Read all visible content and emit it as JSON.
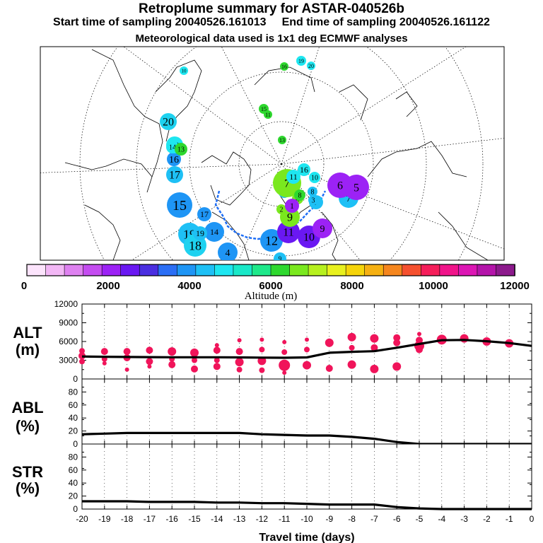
{
  "titles": {
    "main": "Retroplume summary for ASTAR-040526b",
    "start_label": "Start time of sampling",
    "start_value": "20040526.161013",
    "end_label": "End time of sampling",
    "end_value": "20040526.161122",
    "met": "Meteorological data used is 1x1 deg ECMWF analyses"
  },
  "map": {
    "legend_ticks": [
      "0",
      "2000",
      "4000",
      "6000",
      "8000",
      "10000",
      "12000"
    ],
    "legend_label": "Altitude (m)",
    "legend_colors": [
      "#fce4fc",
      "#f2b7f5",
      "#de81f0",
      "#c44cf0",
      "#9c22f5",
      "#6a18f2",
      "#4a2ee0",
      "#2a6ef5",
      "#1e95f5",
      "#1ec0f5",
      "#1ee6f0",
      "#19e8c8",
      "#1ee88a",
      "#2ed82e",
      "#7ae81e",
      "#b6f01e",
      "#e8f01e",
      "#f5d40a",
      "#f5b012",
      "#f5861e",
      "#f5502e",
      "#f51e5a",
      "#f0148a",
      "#dc16b4",
      "#b414aa",
      "#8c1a8c"
    ],
    "labels": [
      {
        "t": "20",
        "c": "#1ed2f0"
      },
      {
        "t": "19",
        "c": "#1ec0f5"
      },
      {
        "t": "18",
        "c": "#1ed2f0"
      },
      {
        "t": "17",
        "c": "#1ec0f5"
      },
      {
        "t": "16",
        "c": "#1e95f5"
      },
      {
        "t": "15",
        "c": "#1e95f5"
      },
      {
        "t": "14",
        "c": "#1e95f5"
      },
      {
        "t": "13",
        "c": "#1ec0f5"
      },
      {
        "t": "12",
        "c": "#1e95f5"
      },
      {
        "t": "11",
        "c": "#6a18f2"
      },
      {
        "t": "10",
        "c": "#6a18f2"
      },
      {
        "t": "9",
        "c": "#9c22f5"
      },
      {
        "t": "9",
        "c": "#7ae81e"
      },
      {
        "t": "7",
        "c": "#1ec0f5"
      },
      {
        "t": "7",
        "c": "#7ae81e"
      },
      {
        "t": "7",
        "c": "#1ec0f5"
      },
      {
        "t": "6",
        "c": "#9c22f5"
      },
      {
        "t": "5",
        "c": "#9c22f5"
      },
      {
        "t": "4",
        "c": "#7ae81e"
      },
      {
        "t": "3",
        "c": "#1ec0f5"
      },
      {
        "t": "2",
        "c": "#7ae81e"
      },
      {
        "t": "1",
        "c": "#9c22f5"
      },
      {
        "t": "18",
        "c": "#1ee6f0"
      },
      {
        "t": "14",
        "c": "#1ee6f0"
      },
      {
        "t": "13",
        "c": "#2ed82e"
      },
      {
        "t": "4",
        "c": "#1e95f5"
      },
      {
        "t": "8",
        "c": "#1ec0f5"
      },
      {
        "t": "16",
        "c": "#1ee6f0"
      },
      {
        "t": "11",
        "c": "#1ee6f0"
      },
      {
        "t": "10",
        "c": "#1ee6f0"
      },
      {
        "t": "19",
        "c": "#1ee6f0"
      },
      {
        "t": "20",
        "c": "#1ee6f0"
      },
      {
        "t": "15",
        "c": "#2ed82e"
      },
      {
        "t": "11",
        "c": "#2ed82e"
      },
      {
        "t": "13",
        "c": "#2ed82e"
      },
      {
        "t": "16",
        "c": "#2ed82e"
      },
      {
        "t": "17",
        "c": "#1e95f5"
      },
      {
        "t": "19",
        "c": "#1ec0f5"
      },
      {
        "t": "10",
        "c": "#1ee6f0"
      },
      {
        "t": "8",
        "c": "#2ed82e"
      },
      {
        "t": "9",
        "c": "#1ec0f5"
      }
    ]
  },
  "chart_data": [
    {
      "type": "line",
      "panel": "ALT",
      "ylabel_line1": "ALT",
      "ylabel_line2": "(m)",
      "xlim": [
        -20,
        0
      ],
      "ylim": [
        0,
        12000
      ],
      "yticks": [
        "0",
        "3000",
        "6000",
        "9000",
        "12000"
      ],
      "line": {
        "x": [
          -20,
          -19,
          -18,
          -17,
          -16,
          -15,
          -14,
          -13,
          -12,
          -11,
          -10,
          -9,
          -8,
          -7,
          -6,
          -5,
          -4,
          -3,
          -2,
          -1,
          0
        ],
        "y": [
          3600,
          3550,
          3520,
          3500,
          3480,
          3480,
          3480,
          3450,
          3420,
          3400,
          3450,
          4200,
          4350,
          4450,
          5000,
          5600,
          6200,
          6250,
          6050,
          5750,
          5300
        ]
      },
      "dots": [
        {
          "x": -20,
          "y": 3700,
          "s": 5
        },
        {
          "x": -20,
          "y": 4500,
          "s": 4
        },
        {
          "x": -20,
          "y": 2800,
          "s": 4
        },
        {
          "x": -19,
          "y": 4400,
          "s": 5
        },
        {
          "x": -19,
          "y": 3200,
          "s": 4
        },
        {
          "x": -19,
          "y": 2500,
          "s": 3
        },
        {
          "x": -18,
          "y": 4400,
          "s": 5
        },
        {
          "x": -18,
          "y": 3400,
          "s": 5
        },
        {
          "x": -18,
          "y": 1500,
          "s": 3
        },
        {
          "x": -17,
          "y": 4600,
          "s": 5
        },
        {
          "x": -17,
          "y": 2800,
          "s": 5
        },
        {
          "x": -17,
          "y": 2000,
          "s": 3
        },
        {
          "x": -16,
          "y": 4400,
          "s": 6
        },
        {
          "x": -16,
          "y": 3200,
          "s": 4
        },
        {
          "x": -16,
          "y": 2300,
          "s": 5
        },
        {
          "x": -15,
          "y": 4200,
          "s": 6
        },
        {
          "x": -15,
          "y": 3000,
          "s": 4
        },
        {
          "x": -15,
          "y": 1600,
          "s": 5
        },
        {
          "x": -14,
          "y": 5400,
          "s": 3
        },
        {
          "x": -14,
          "y": 4600,
          "s": 5
        },
        {
          "x": -14,
          "y": 3000,
          "s": 4
        },
        {
          "x": -14,
          "y": 2000,
          "s": 5
        },
        {
          "x": -13,
          "y": 6200,
          "s": 3
        },
        {
          "x": -13,
          "y": 4400,
          "s": 5
        },
        {
          "x": -13,
          "y": 2700,
          "s": 6
        },
        {
          "x": -13,
          "y": 1500,
          "s": 4
        },
        {
          "x": -12,
          "y": 6300,
          "s": 3
        },
        {
          "x": -12,
          "y": 4700,
          "s": 4
        },
        {
          "x": -12,
          "y": 2900,
          "s": 6
        },
        {
          "x": -12,
          "y": 1400,
          "s": 4
        },
        {
          "x": -11,
          "y": 5900,
          "s": 3
        },
        {
          "x": -11,
          "y": 4300,
          "s": 4
        },
        {
          "x": -11,
          "y": 2200,
          "s": 8
        },
        {
          "x": -11,
          "y": 1000,
          "s": 3
        },
        {
          "x": -10,
          "y": 6300,
          "s": 3
        },
        {
          "x": -10,
          "y": 4700,
          "s": 4
        },
        {
          "x": -10,
          "y": 2200,
          "s": 6
        },
        {
          "x": -9,
          "y": 5800,
          "s": 6
        },
        {
          "x": -9,
          "y": 1700,
          "s": 5
        },
        {
          "x": -8,
          "y": 6700,
          "s": 6
        },
        {
          "x": -8,
          "y": 5000,
          "s": 4
        },
        {
          "x": -8,
          "y": 2300,
          "s": 6
        },
        {
          "x": -7,
          "y": 6500,
          "s": 6
        },
        {
          "x": -7,
          "y": 5000,
          "s": 5
        },
        {
          "x": -7,
          "y": 1600,
          "s": 6
        },
        {
          "x": -6,
          "y": 6600,
          "s": 5
        },
        {
          "x": -6,
          "y": 5800,
          "s": 5
        },
        {
          "x": -6,
          "y": 2000,
          "s": 6
        },
        {
          "x": -5,
          "y": 7200,
          "s": 3
        },
        {
          "x": -5,
          "y": 6200,
          "s": 5
        },
        {
          "x": -5,
          "y": 5300,
          "s": 7
        },
        {
          "x": -5,
          "y": 4700,
          "s": 5
        },
        {
          "x": -4,
          "y": 6300,
          "s": 7
        },
        {
          "x": -3,
          "y": 6500,
          "s": 6
        },
        {
          "x": -2,
          "y": 6000,
          "s": 6
        },
        {
          "x": -1,
          "y": 5700,
          "s": 6
        }
      ]
    },
    {
      "type": "line",
      "panel": "ABL",
      "ylabel_line1": "ABL",
      "ylabel_line2": "(%)",
      "xlim": [
        -20,
        0
      ],
      "ylim": [
        0,
        100
      ],
      "yticks": [
        "0",
        "20",
        "40",
        "60",
        "80"
      ],
      "x": [
        -20,
        -19,
        -18,
        -17,
        -16,
        -15,
        -14,
        -13,
        -12,
        -11,
        -10,
        -9,
        -8,
        -7,
        -6,
        -5,
        -4,
        -3,
        -2,
        -1,
        0
      ],
      "y": [
        15,
        16,
        17,
        17,
        17,
        17,
        17,
        17,
        15,
        14,
        13,
        13,
        11,
        8,
        3,
        0,
        0,
        0,
        0,
        0,
        0
      ]
    },
    {
      "type": "line",
      "panel": "STR",
      "ylabel_line1": "STR",
      "ylabel_line2": "(%)",
      "xlim": [
        -20,
        0
      ],
      "ylim": [
        0,
        100
      ],
      "yticks": [
        "0",
        "20",
        "40",
        "60",
        "80"
      ],
      "xticks": [
        "-20",
        "-19",
        "-18",
        "-17",
        "-16",
        "-15",
        "-14",
        "-13",
        "-12",
        "-11",
        "-10",
        "-9",
        "-8",
        "-7",
        "-6",
        "-5",
        "-4",
        "-3",
        "-2",
        "-1",
        "0"
      ],
      "xlabel": "Travel time (days)",
      "x": [
        -20,
        -19,
        -18,
        -17,
        -16,
        -15,
        -14,
        -13,
        -12,
        -11,
        -10,
        -9,
        -8,
        -7,
        -6,
        -5,
        -4,
        -3,
        -2,
        -1,
        0
      ],
      "y": [
        12,
        12,
        12,
        11,
        11,
        11,
        10,
        10,
        9,
        9,
        8,
        7,
        7,
        7,
        3,
        1,
        0,
        0,
        0,
        0,
        0
      ]
    }
  ]
}
